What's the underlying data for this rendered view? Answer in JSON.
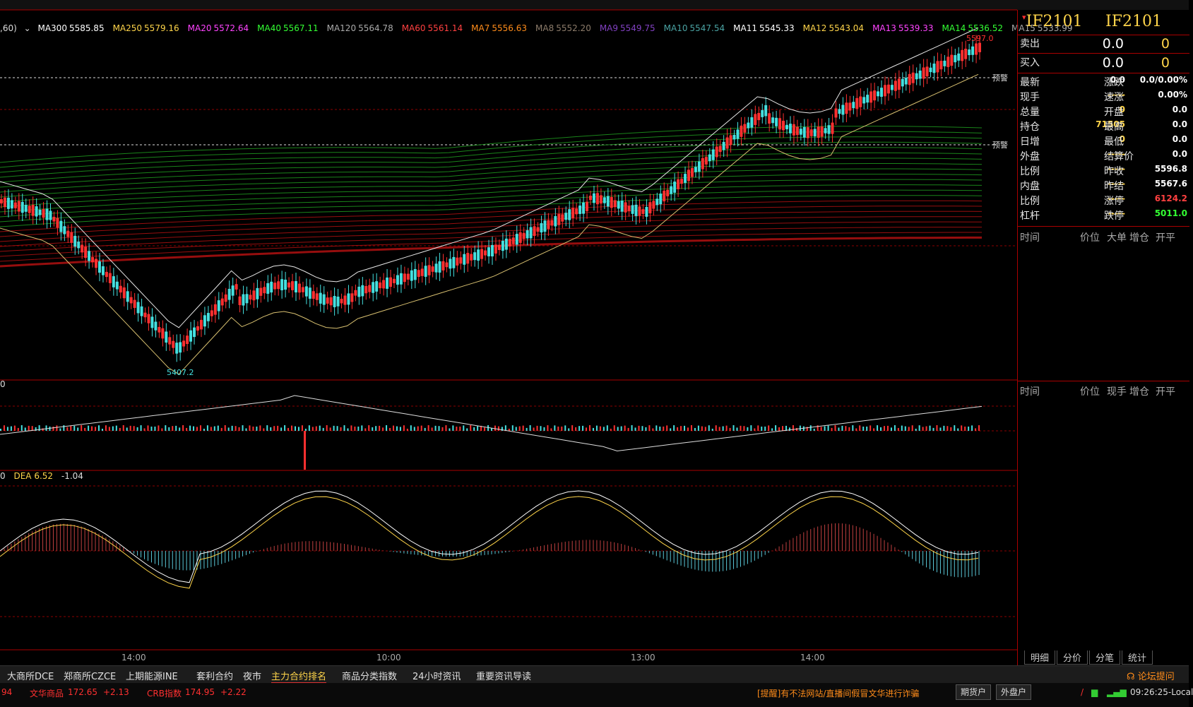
{
  "instrument": {
    "code_left": "IF2101",
    "code_right": "IF2101"
  },
  "quote": {
    "sell": {
      "label": "卖出",
      "price": "0.0",
      "vol": "0"
    },
    "buy": {
      "label": "买入",
      "price": "0.0",
      "vol": "0"
    }
  },
  "stats": [
    {
      "l1": "最新",
      "v1": "0.0",
      "c1": "#ffffff",
      "l2": "涨跌",
      "v2": "0.0/0.00%",
      "c2": "#ffffff"
    },
    {
      "l1": "现手",
      "v1": "-----",
      "c1": "#ffd54a",
      "l2": "速涨",
      "v2": "0.00%",
      "c2": "#ffffff"
    },
    {
      "l1": "总量",
      "v1": "0",
      "c1": "#ffd54a",
      "l2": "开盘",
      "v2": "0.0",
      "c2": "#ffffff"
    },
    {
      "l1": "持仓",
      "v1": "71505",
      "c1": "#ffd54a",
      "l2": "最高",
      "v2": "0.0",
      "c2": "#ffffff"
    },
    {
      "l1": "日增",
      "v1": "0",
      "c1": "#ffd54a",
      "l2": "最低",
      "v2": "0.0",
      "c2": "#ffffff"
    },
    {
      "l1": "外盘",
      "v1": "-----",
      "c1": "#ffd54a",
      "l2": "结算价",
      "v2": "0.0",
      "c2": "#ffffff"
    },
    {
      "l1": "比例",
      "v1": "-----",
      "c1": "#ffd54a",
      "l2": "昨收",
      "v2": "5596.8",
      "c2": "#ffffff"
    },
    {
      "l1": "内盘",
      "v1": "-----",
      "c1": "#ffd54a",
      "l2": "昨结",
      "v2": "5567.6",
      "c2": "#ffffff"
    },
    {
      "l1": "比例",
      "v1": "-----",
      "c1": "#ffd54a",
      "l2": "涨停",
      "v2": "6124.2",
      "c2": "#ff4040"
    },
    {
      "l1": "杠杆",
      "v1": "-----",
      "c1": "#ffd54a",
      "l2": "跌停",
      "v2": "5011.0",
      "c2": "#33ff33"
    }
  ],
  "tick_header_1": {
    "time": "时间",
    "price": "价位",
    "big": "大单",
    "inc": "增仓",
    "open": "开平"
  },
  "tick_header_2": {
    "time": "时间",
    "price": "价位",
    "vol": "现手",
    "inc": "增仓",
    "open": "开平"
  },
  "panel_tabs": [
    "明细",
    "分价",
    "分笔",
    "统计"
  ],
  "ma_legend_prefix": ",60)",
  "ma_legend": [
    {
      "label": "MA300",
      "value": "5585.85",
      "color": "#ffffff"
    },
    {
      "label": "MA250",
      "value": "5579.16",
      "color": "#ffd54a"
    },
    {
      "label": "MA20",
      "value": "5572.64",
      "color": "#ff44ff"
    },
    {
      "label": "MA40",
      "value": "5567.11",
      "color": "#33ff33"
    },
    {
      "label": "MA120",
      "value": "5564.78",
      "color": "#aaaaaa"
    },
    {
      "label": "MA60",
      "value": "5561.14",
      "color": "#ff4040"
    },
    {
      "label": "MA7",
      "value": "5556.63",
      "color": "#ff8c1a"
    },
    {
      "label": "MA8",
      "value": "5552.20",
      "color": "#8c7b6a"
    },
    {
      "label": "MA9",
      "value": "5549.75",
      "color": "#8040c0"
    },
    {
      "label": "MA10",
      "value": "5547.54",
      "color": "#4aa3a3"
    },
    {
      "label": "MA11",
      "value": "5545.33",
      "color": "#ffffff"
    },
    {
      "label": "MA12",
      "value": "5543.04",
      "color": "#ffd54a"
    },
    {
      "label": "MA13",
      "value": "5539.33",
      "color": "#ff44ff"
    },
    {
      "label": "MA14",
      "value": "5536.52",
      "color": "#33ff33"
    },
    {
      "label": "MA15",
      "value": "5533.99",
      "color": "#aaaaaa"
    }
  ],
  "price_labels": {
    "high": "5597.0",
    "low": "5407.2",
    "alert1": "预警",
    "alert2": "预警"
  },
  "macd_legend": {
    "prefix": "0",
    "dea_label": "DEA",
    "dea": "6.52",
    "macd": "-1.04"
  },
  "vol_legend": "0",
  "time_axis": [
    "14:00",
    "10:00",
    "13:00",
    "14:00"
  ],
  "exchange_tabs": [
    "大商所DCE",
    "郑商所CZCE",
    "上期能源INE",
    "套利合约",
    "夜市",
    "主力合约排名",
    "商品分类指数",
    "24小时资讯",
    "重要资讯导读"
  ],
  "active_exchange_tab": "主力合约排名",
  "forum_link": "论坛提问",
  "status": {
    "first": "94",
    "idx1_name": "文华商品",
    "idx1_value": "172.65",
    "idx1_change": "+2.13",
    "idx2_name": "CRB指数",
    "idx2_value": "174.95",
    "idx2_change": "+2.22",
    "notice": "[提醒]有不法网站/直播间假冒文华进行诈骗",
    "btn1": "期货户",
    "btn2": "外盘户",
    "clock": "09:26:25-Local"
  },
  "colors": {
    "up": "#ff3030",
    "down": "#44e0e0",
    "grid": "#8b0000",
    "panel_border": "#aa0000"
  }
}
